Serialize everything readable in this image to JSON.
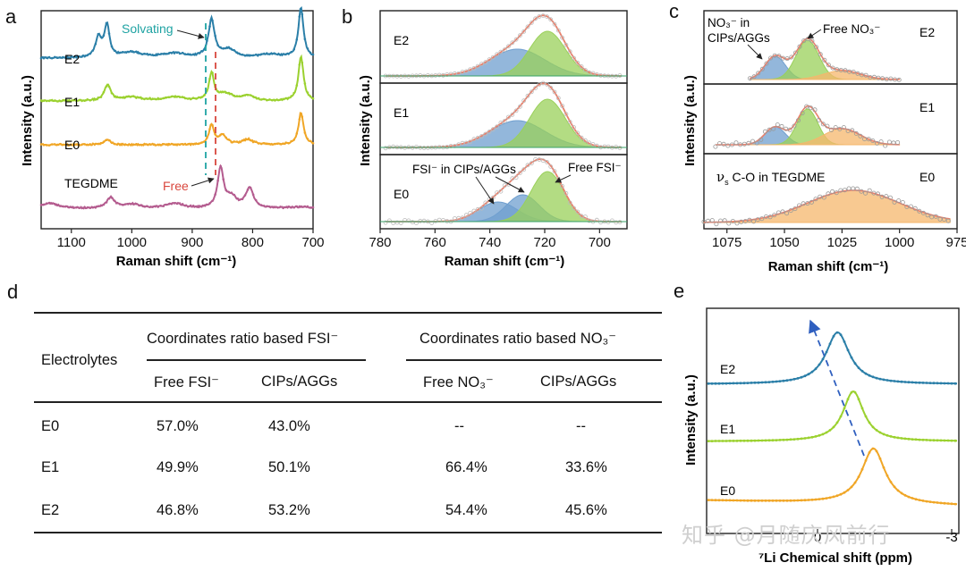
{
  "panels": {
    "a": {
      "letter": "a",
      "xlabel": "Raman shift (cm⁻¹)",
      "ylabel": "Intensity (a.u.)",
      "xlim": [
        1150,
        700
      ],
      "xticks": [
        1100,
        1000,
        900,
        800,
        700
      ],
      "curve_labels": [
        "E2",
        "E1",
        "E0",
        "TEGDME"
      ],
      "annotations": {
        "solvating": "Solvating",
        "free": "Free"
      },
      "solvating_position": 868,
      "free_position": 853
    },
    "b": {
      "letter": "b",
      "xlabel": "Raman shift (cm⁻¹)",
      "ylabel": "Intensity (a.u.)",
      "xlim": [
        780,
        690
      ],
      "xticks": [
        780,
        760,
        740,
        720,
        700
      ],
      "subpanel_labels": [
        "E2",
        "E1",
        "E0"
      ],
      "annotations": {
        "fsi_cip": "FSI⁻ in CIPs/AGGs",
        "free_fsi": "Free FSI⁻"
      }
    },
    "c": {
      "letter": "c",
      "xlabel": "Raman shift (cm⁻¹)",
      "ylabel": "Intensity (a.u.)",
      "xlim": [
        1085,
        975
      ],
      "xticks": [
        1075,
        1050,
        1025,
        1000,
        975
      ],
      "subpanel_labels": [
        "E2",
        "E1",
        "E0"
      ],
      "annotations": {
        "no3_cip_line1": "NO₃⁻ in",
        "no3_cip_line2": "CIPs/AGGs",
        "free_no3": "Free NO₃⁻",
        "tegdme_symbol": "ν",
        "tegdme_sub": "s",
        "tegdme_rest": " C-O in TEGDME"
      }
    },
    "d": {
      "letter": "d"
    },
    "e": {
      "letter": "e",
      "xlabel": "⁷Li Chemical shift (ppm)",
      "ylabel": "Intensity (a.u.)",
      "xticks": [
        "0",
        "-3"
      ],
      "curve_labels": [
        "E2",
        "E1",
        "E0"
      ]
    }
  },
  "table": {
    "row_header": "Electrolytes",
    "group1": "Coordinates ratio based FSI⁻",
    "group2": "Coordinates ratio based NO₃⁻",
    "sub_headers": [
      "Free FSI⁻",
      "CIPs/AGGs",
      "Free NO₃⁻",
      "CIPs/AGGs"
    ],
    "rows": [
      {
        "name": "E0",
        "free_fsi": "57.0%",
        "cip_fsi": "43.0%",
        "free_no3": "--",
        "cip_no3": "--"
      },
      {
        "name": "E1",
        "free_fsi": "49.9%",
        "cip_fsi": "50.1%",
        "free_no3": "66.4%",
        "cip_no3": "33.6%"
      },
      {
        "name": "E2",
        "free_fsi": "46.8%",
        "cip_fsi": "53.2%",
        "free_no3": "54.4%",
        "cip_no3": "45.6%"
      }
    ]
  },
  "chart_data": [
    {
      "type": "line",
      "title": "",
      "xlabel": "Raman shift (cm⁻¹)",
      "ylabel": "Intensity (a.u.)",
      "xlim": [
        1150,
        700
      ],
      "series": [
        {
          "name": "E2",
          "peaks": [
            1055,
            1040,
            868,
            720
          ]
        },
        {
          "name": "E1",
          "peaks": [
            1040,
            868,
            720
          ]
        },
        {
          "name": "E0",
          "peaks": [
            868,
            720
          ]
        },
        {
          "name": "TEGDME",
          "peaks": [
            853,
            805
          ]
        }
      ]
    },
    {
      "type": "line",
      "title": "",
      "xlabel": "Raman shift (cm⁻¹)",
      "ylabel": "Intensity (a.u.)",
      "xlim": [
        780,
        690
      ],
      "series": [
        {
          "name": "E2",
          "components": [
            {
              "label": "FSI⁻ in CIPs/AGGs",
              "center": 730
            },
            {
              "label": "Free FSI⁻",
              "center": 719
            }
          ]
        },
        {
          "name": "E1",
          "components": [
            {
              "label": "FSI⁻ in CIPs/AGGs",
              "center": 730
            },
            {
              "label": "Free FSI⁻",
              "center": 719
            }
          ]
        },
        {
          "name": "E0",
          "components": [
            {
              "label": "FSI⁻ in CIPs/AGGs",
              "center": 737
            },
            {
              "label": "FSI⁻ in CIPs/AGGs",
              "center": 728
            },
            {
              "label": "Free FSI⁻",
              "center": 719
            }
          ]
        }
      ]
    },
    {
      "type": "line",
      "title": "",
      "xlabel": "Raman shift (cm⁻¹)",
      "ylabel": "Intensity (a.u.)",
      "xlim": [
        1085,
        975
      ],
      "series": [
        {
          "name": "E2",
          "components": [
            {
              "label": "NO₃⁻ in CIPs/AGGs",
              "center": 1054
            },
            {
              "label": "Free NO₃⁻",
              "center": 1040
            },
            {
              "label": "νs C-O in TEGDME",
              "center": 1025
            }
          ]
        },
        {
          "name": "E1",
          "components": [
            {
              "label": "NO₃⁻ in CIPs/AGGs",
              "center": 1054
            },
            {
              "label": "Free NO₃⁻",
              "center": 1040
            },
            {
              "label": "νs C-O in TEGDME",
              "center": 1025
            }
          ]
        },
        {
          "name": "E0",
          "components": [
            {
              "label": "νs C-O in TEGDME",
              "center": 1020
            }
          ]
        }
      ]
    },
    {
      "type": "table",
      "columns": [
        "Electrolytes",
        "Free FSI⁻",
        "CIPs/AGGs",
        "Free NO₃⁻",
        "CIPs/AGGs"
      ],
      "rows": [
        [
          "E0",
          "57.0%",
          "43.0%",
          "--",
          "--"
        ],
        [
          "E1",
          "49.9%",
          "50.1%",
          "66.4%",
          "33.6%"
        ],
        [
          "E2",
          "46.8%",
          "53.2%",
          "54.4%",
          "45.6%"
        ]
      ]
    },
    {
      "type": "line",
      "title": "",
      "xlabel": "⁷Li Chemical shift (ppm)",
      "ylabel": "Intensity (a.u.)",
      "series": [
        {
          "name": "E2",
          "peak_ppm": -0.45
        },
        {
          "name": "E1",
          "peak_ppm": -0.8
        },
        {
          "name": "E0",
          "peak_ppm": -1.25
        }
      ]
    }
  ],
  "watermark": "知乎 @月随庆风前行",
  "colors": {
    "blue": "#2b7fa8",
    "green": "#9bd12f",
    "orange": "#f0a626",
    "pink": "#b45c8f",
    "fit_red": "#e8806c",
    "fill_blue": "#6f9fcf",
    "fill_green": "#9ad05a",
    "fill_orange": "#f5b76c",
    "dash_teal": "#1fa3a3",
    "dash_red": "#d9473e",
    "arrow_blue": "#2f5fbf"
  }
}
